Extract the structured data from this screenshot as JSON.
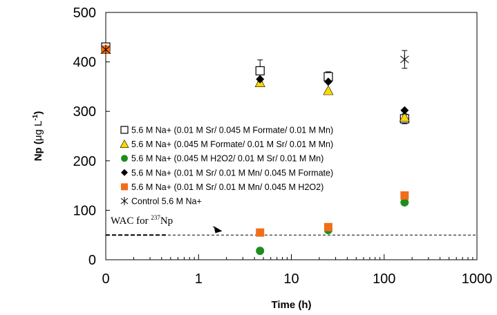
{
  "chart_data": {
    "type": "scatter",
    "title": "",
    "xlabel": "Time (h)",
    "ylabel_text": "Np (",
    "ylabel_mu": "μg L",
    "ylabel_sup": "-1",
    "ylabel_close": ")",
    "xscale": "log (with 0 plotted at left)",
    "x_tick_labels": [
      "0",
      "1",
      "10",
      "100",
      "1000"
    ],
    "y_tick_labels": [
      "0",
      "100",
      "200",
      "300",
      "400",
      "500"
    ],
    "ylim": [
      0,
      500
    ],
    "grid": false,
    "legend_position": "center-left",
    "series": [
      {
        "name": "5.6 M Na+ (0.01 M Sr/ 0.045 M Formate/ 0.01 M Mn)",
        "marker": "open-square",
        "color": "#000000",
        "x": [
          0,
          4.6,
          25,
          166
        ],
        "y": [
          430,
          382,
          370,
          285
        ],
        "err": [
          6,
          22,
          10,
          10
        ]
      },
      {
        "name": "5.6 M Na+ (0.045 M Formate/ 0.01 M Sr/ 0.01 M Mn)",
        "marker": "triangle",
        "color": "#ffd700",
        "x": [
          0,
          4.6,
          25,
          166
        ],
        "y": [
          425,
          358,
          342,
          288
        ],
        "err": [
          0,
          0,
          0,
          0
        ]
      },
      {
        "name": "5.6 M Na+ (0.045 M H2O2/ 0.01 M Sr/ 0.01 M Mn)",
        "marker": "circle",
        "color": "#1e8c1e",
        "x": [
          0,
          4.6,
          25,
          166
        ],
        "y": [
          425,
          18,
          60,
          116
        ],
        "err": [
          0,
          0,
          0,
          0
        ]
      },
      {
        "name": "5.6 M Na+ (0.01 M Sr/ 0.01 M Mn/ 0.045 M Formate)",
        "marker": "diamond",
        "color": "#000000",
        "x": [
          0,
          4.6,
          25,
          166
        ],
        "y": [
          425,
          365,
          360,
          302
        ],
        "err": [
          0,
          0,
          0,
          0
        ]
      },
      {
        "name": "5.6 M Na+ (0.01 M Sr/ 0.01 M Mn/ 0.045 M H2O2)",
        "marker": "filled-square",
        "color": "#f26d1a",
        "x": [
          0,
          4.6,
          25,
          166
        ],
        "y": [
          425,
          55,
          66,
          130
        ],
        "err": [
          0,
          0,
          0,
          0
        ]
      },
      {
        "name": "Control 5.6 M Na+",
        "marker": "asterisk",
        "color": "#000000",
        "x": [
          0,
          166
        ],
        "y": [
          425,
          405
        ],
        "err": [
          0,
          18
        ]
      }
    ],
    "reference_line": {
      "y": 50,
      "style": "dashed"
    },
    "annotation": {
      "text_main": "WAC for ",
      "text_sup": "237",
      "text_end": "Np",
      "x": 1.8,
      "y": 58
    }
  }
}
